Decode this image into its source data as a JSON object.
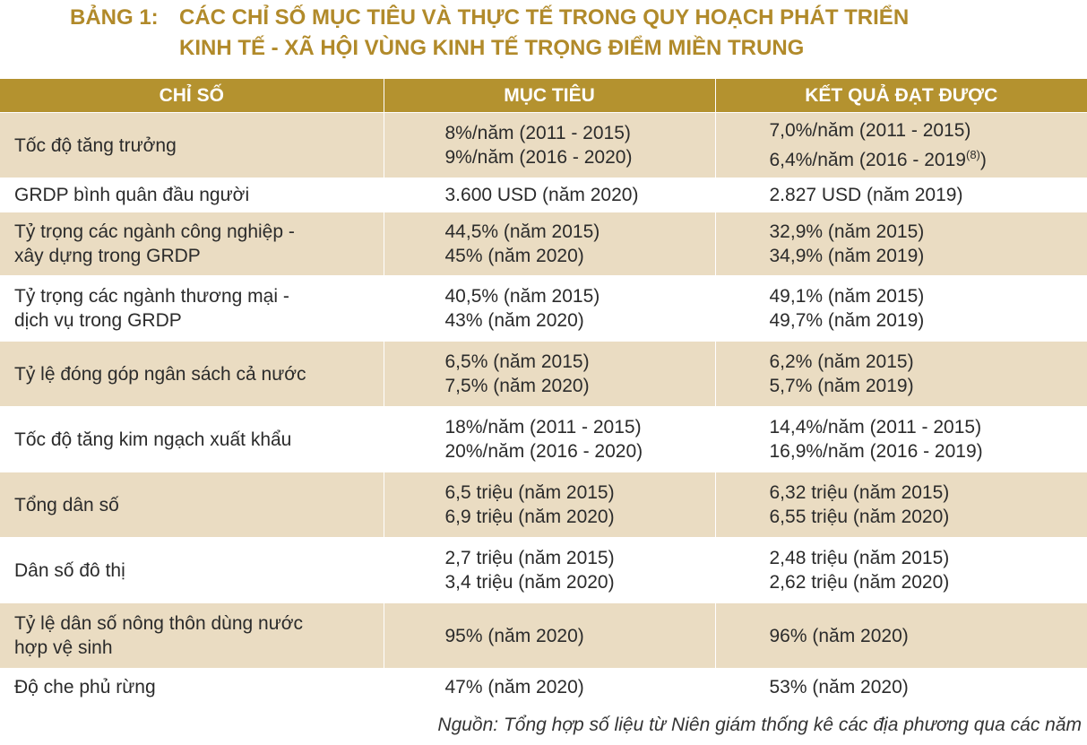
{
  "title": {
    "label": "BẢNG 1:",
    "line1": "CÁC CHỈ SỐ MỤC TIÊU VÀ THỰC TẾ TRONG QUY HOẠCH PHÁT TRIỂN",
    "line2": "KINH  TẾ - XÃ HỘI VÙNG KINH TẾ TRỌNG ĐIỂM MIỀN TRUNG"
  },
  "headers": [
    "CHỈ SỐ",
    "MỤC TIÊU",
    "KẾT QUẢ ĐẠT ĐƯỢC"
  ],
  "rows": [
    {
      "indicator": [
        "Tốc độ tăng trưởng"
      ],
      "target": [
        "8%/năm (2011 - 2015)",
        "9%/năm (2016 - 2020)"
      ],
      "result": [
        "7,0%/năm (2011 - 2015)",
        "6,4%/năm (2016 - 2019"
      ],
      "result_sup": "(8)",
      "result_tail": ")"
    },
    {
      "indicator": [
        "GRDP bình quân đầu người"
      ],
      "target": [
        "3.600 USD (năm 2020)"
      ],
      "result": [
        "2.827 USD (năm 2019)"
      ]
    },
    {
      "indicator": [
        "Tỷ trọng các ngành công nghiệp -",
        "xây dựng trong GRDP"
      ],
      "target": [
        "44,5% (năm 2015)",
        "45% (năm 2020)"
      ],
      "result": [
        "32,9% (năm 2015)",
        "34,9% (năm 2019)"
      ]
    },
    {
      "indicator": [
        "Tỷ trọng các ngành thương mại -",
        "dịch vụ trong GRDP"
      ],
      "target": [
        "40,5% (năm 2015)",
        "43% (năm 2020)"
      ],
      "result": [
        "49,1% (năm 2015)",
        "49,7% (năm 2019)"
      ]
    },
    {
      "indicator": [
        "Tỷ lệ đóng góp ngân sách cả nước"
      ],
      "target": [
        "6,5% (năm 2015)",
        "7,5% (năm 2020)"
      ],
      "result": [
        "6,2% (năm 2015)",
        "5,7% (năm 2019)"
      ]
    },
    {
      "indicator": [
        "Tốc độ tăng kim ngạch xuất khẩu"
      ],
      "target": [
        "18%/năm (2011 - 2015)",
        "20%/năm (2016 - 2020)"
      ],
      "result": [
        "14,4%/năm (2011 - 2015)",
        "16,9%/năm (2016 - 2019)"
      ]
    },
    {
      "indicator": [
        "Tổng dân số"
      ],
      "target": [
        "6,5 triệu (năm 2015)",
        "6,9 triệu (năm 2020)"
      ],
      "result": [
        "6,32 triệu (năm 2015)",
        "6,55 triệu (năm 2020)"
      ]
    },
    {
      "indicator": [
        "Dân số đô thị"
      ],
      "target": [
        "2,7 triệu (năm 2015)",
        "3,4 triệu (năm 2020)"
      ],
      "result": [
        "2,48 triệu (năm 2015)",
        "2,62 triệu (năm 2020)"
      ]
    },
    {
      "indicator": [
        "Tỷ lệ dân số nông thôn dùng nước",
        "hợp vệ sinh"
      ],
      "target": [
        "95% (năm 2020)"
      ],
      "result": [
        "96% (năm 2020)"
      ]
    },
    {
      "indicator": [
        "Độ che phủ rừng"
      ],
      "target": [
        "47% (năm 2020)"
      ],
      "result": [
        "53% (năm 2020)"
      ]
    }
  ],
  "source": "Nguồn: Tổng hợp số liệu từ Niên giám thống kê các địa phương qua các năm",
  "colors": {
    "title": "#b18a2a",
    "header_bg": "#b4922f",
    "shaded_row": "#eadcc2"
  }
}
